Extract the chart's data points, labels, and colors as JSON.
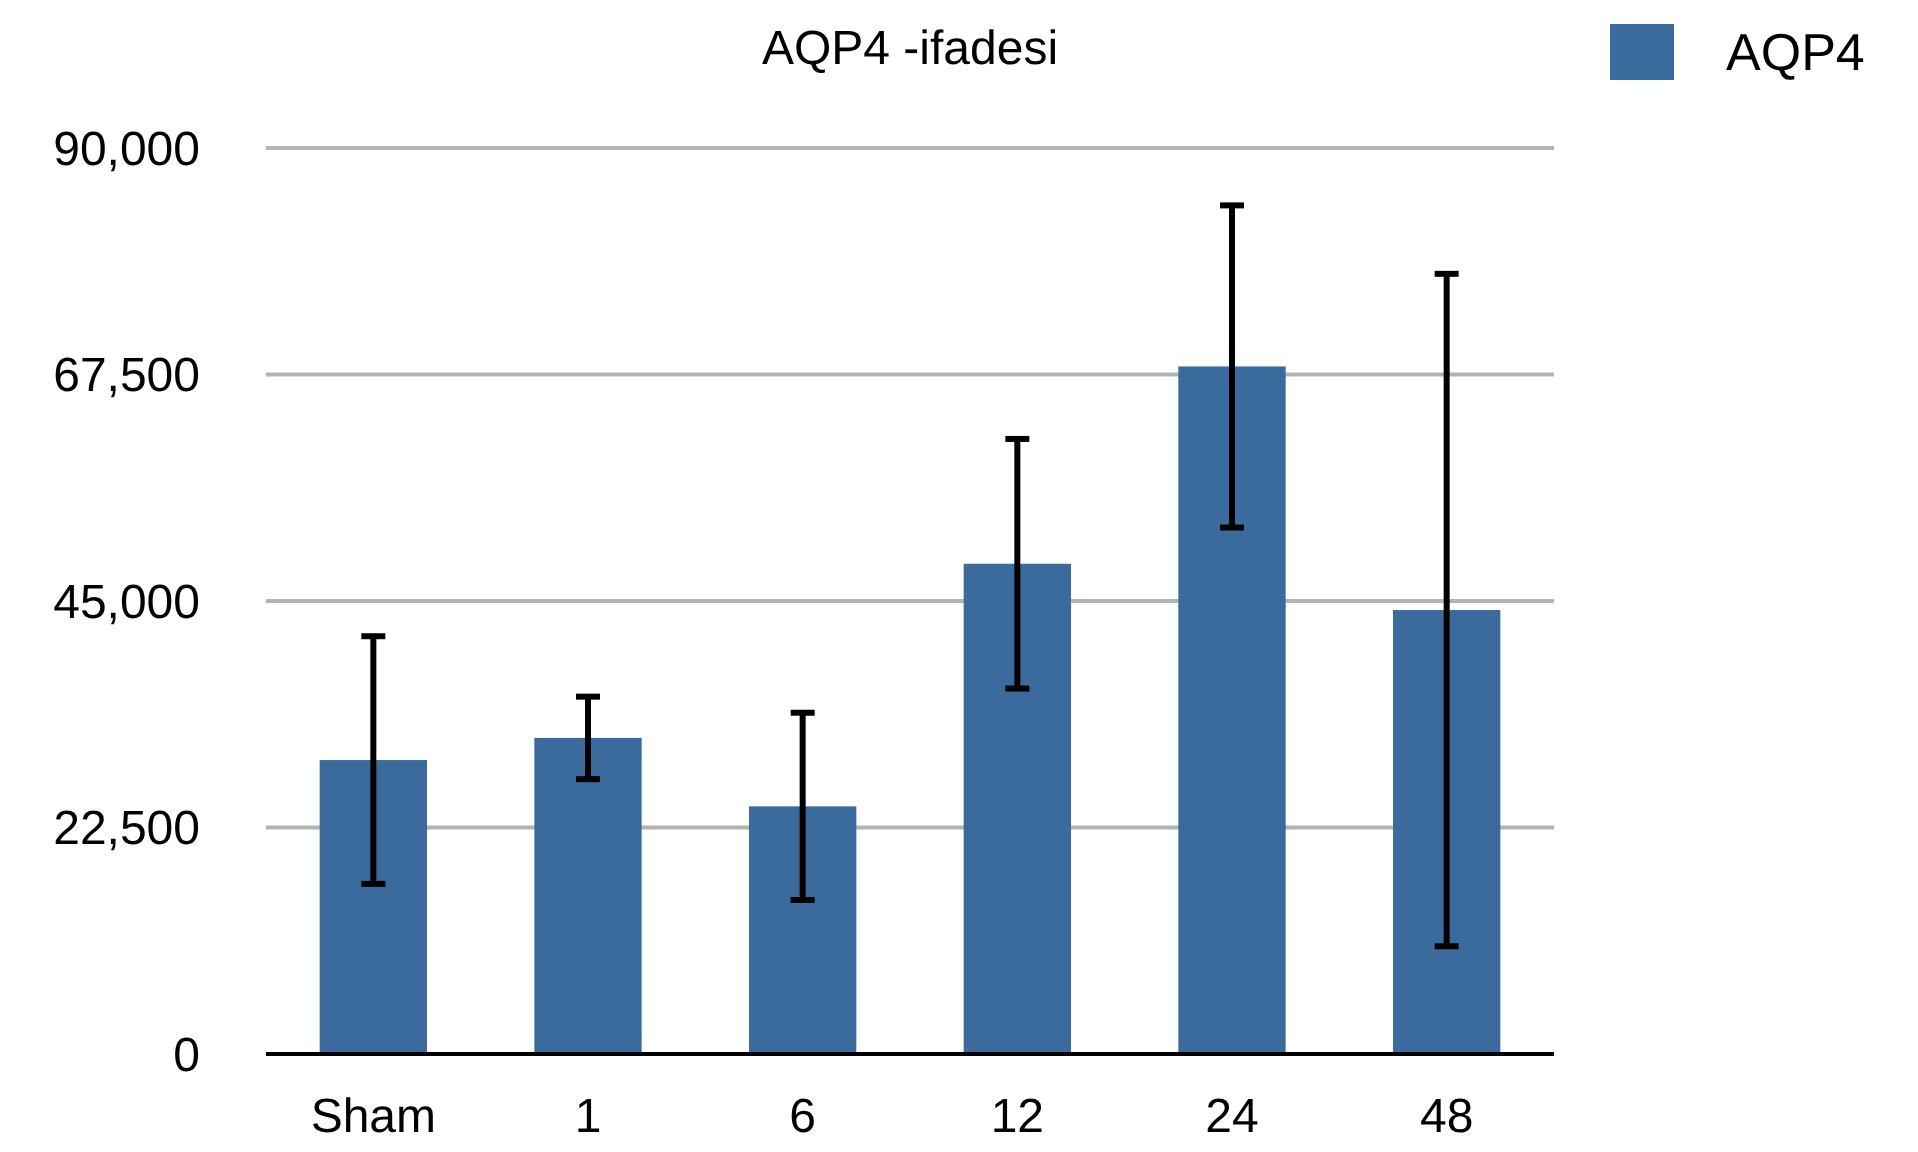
{
  "chart_data": {
    "type": "bar",
    "title": "AQP4 -ifadesi",
    "categories": [
      "Sham",
      "1",
      "6",
      "12",
      "24",
      "48"
    ],
    "series": [
      {
        "name": "AQP4",
        "color": "#3b6a9c",
        "values": [
          29200,
          31400,
          24600,
          48700,
          68300,
          44100
        ],
        "errors": [
          12300,
          4100,
          9300,
          12400,
          16000,
          33400
        ]
      }
    ],
    "ylim": [
      0,
      90000
    ],
    "yticks": [
      {
        "value": 0,
        "label": "0"
      },
      {
        "value": 22500,
        "label": "22,500"
      },
      {
        "value": 45000,
        "label": "45,000"
      },
      {
        "value": 67500,
        "label": "67,500"
      },
      {
        "value": 90000,
        "label": "90,000"
      }
    ],
    "grid": "y",
    "legend": "top right"
  }
}
